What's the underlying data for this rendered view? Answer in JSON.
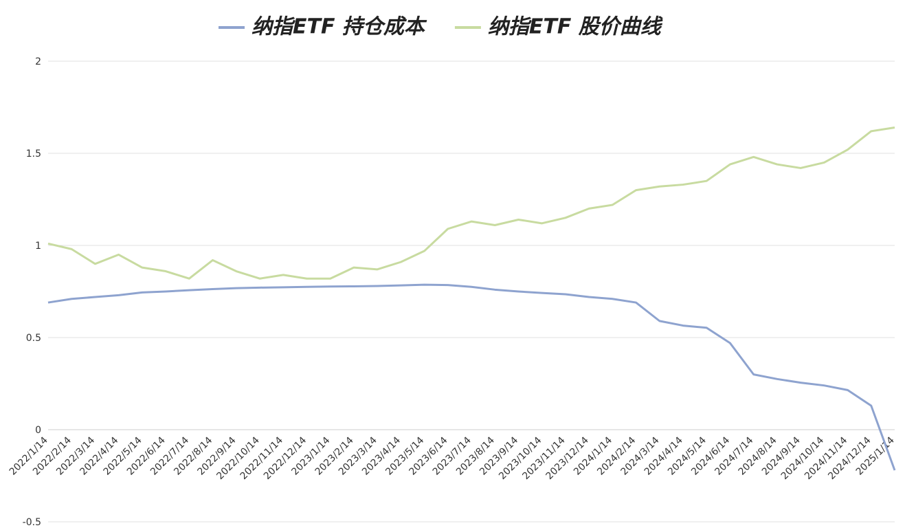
{
  "chart_data": {
    "type": "line",
    "categories": [
      "2022/1/14",
      "2022/2/14",
      "2022/3/14",
      "2022/4/14",
      "2022/5/14",
      "2022/6/14",
      "2022/7/14",
      "2022/8/14",
      "2022/9/14",
      "2022/10/14",
      "2022/11/14",
      "2022/12/14",
      "2023/1/14",
      "2023/2/14",
      "2023/3/14",
      "2023/4/14",
      "2023/5/14",
      "2023/6/14",
      "2023/7/14",
      "2023/8/14",
      "2023/9/14",
      "2023/10/14",
      "2023/11/14",
      "2023/12/14",
      "2024/1/14",
      "2024/2/14",
      "2024/3/14",
      "2024/4/14",
      "2024/5/14",
      "2024/6/14",
      "2024/7/14",
      "2024/8/14",
      "2024/9/14",
      "2024/10/14",
      "2024/11/14",
      "2024/12/14",
      "2025/1/14"
    ],
    "series": [
      {
        "name": "纳指ETF 持仓成本",
        "color": "#8ea3cf",
        "values": [
          0.69,
          0.71,
          0.72,
          0.73,
          0.745,
          0.75,
          0.757,
          0.763,
          0.768,
          0.771,
          0.773,
          0.775,
          0.777,
          0.778,
          0.78,
          0.783,
          0.787,
          0.785,
          0.775,
          0.76,
          0.75,
          0.742,
          0.735,
          0.72,
          0.71,
          0.69,
          0.59,
          0.565,
          0.553,
          0.47,
          0.3,
          0.275,
          0.255,
          0.24,
          0.215,
          0.13,
          -0.22
        ]
      },
      {
        "name": "纳指ETF 股价曲线",
        "color": "#c8dba0",
        "values": [
          1.01,
          0.98,
          0.9,
          0.95,
          0.88,
          0.86,
          0.82,
          0.92,
          0.86,
          0.82,
          0.84,
          0.82,
          0.82,
          0.88,
          0.87,
          0.91,
          0.97,
          1.09,
          1.13,
          1.11,
          1.14,
          1.12,
          1.15,
          1.2,
          1.22,
          1.3,
          1.32,
          1.33,
          1.35,
          1.44,
          1.48,
          1.44,
          1.42,
          1.45,
          1.52,
          1.62,
          1.64
        ]
      }
    ],
    "ylim": [
      -0.5,
      2
    ],
    "yticks": [
      -0.5,
      0,
      0.5,
      1,
      1.5,
      2
    ],
    "grid": true
  }
}
